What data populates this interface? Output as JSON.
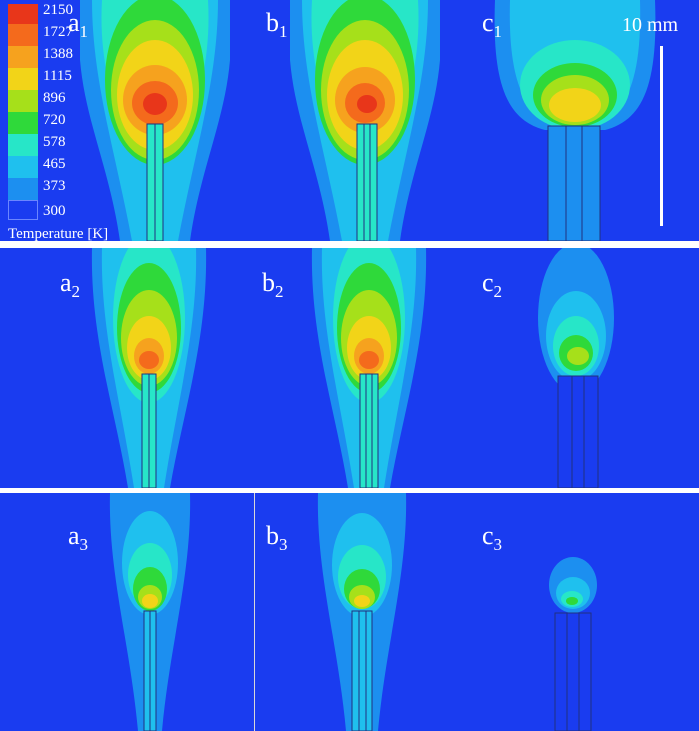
{
  "colorbar": {
    "title": "Temperature [K]",
    "ticks": [
      "2150",
      "1727",
      "1388",
      "1115",
      "896",
      "720",
      "578",
      "465",
      "373",
      "300"
    ],
    "colors": [
      "#e8361a",
      "#f46a1c",
      "#f6a21e",
      "#f2d418",
      "#a6e01a",
      "#2fd93a",
      "#27e6c8",
      "#1fc0ee",
      "#1c8ff0",
      "#1a3cf0"
    ]
  },
  "scale_bar": {
    "label": "10 mm"
  },
  "rows": [
    {
      "labels": [
        {
          "base": "a",
          "sub": "1"
        },
        {
          "base": "b",
          "sub": "1"
        },
        {
          "base": "c",
          "sub": "1"
        }
      ]
    },
    {
      "labels": [
        {
          "base": "a",
          "sub": "2"
        },
        {
          "base": "b",
          "sub": "2"
        },
        {
          "base": "c",
          "sub": "2"
        }
      ]
    },
    {
      "labels": [
        {
          "base": "a",
          "sub": "3"
        },
        {
          "base": "b",
          "sub": "3"
        },
        {
          "base": "c",
          "sub": "3"
        }
      ]
    }
  ]
}
